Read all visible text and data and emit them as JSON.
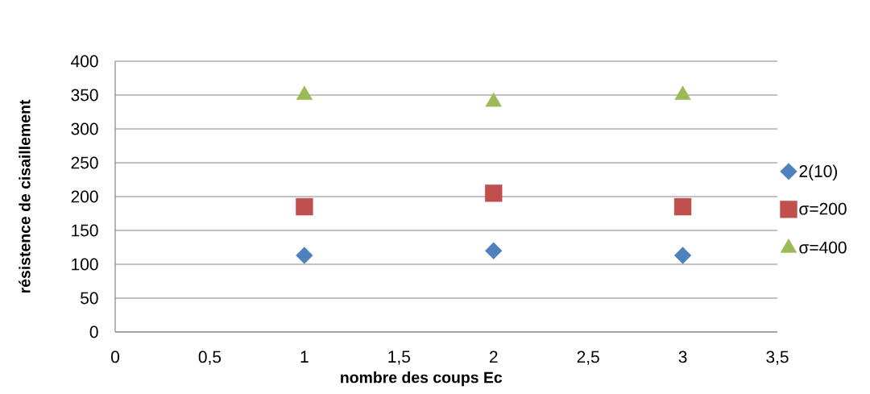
{
  "chart_data": {
    "type": "scatter",
    "xlabel": "nombre des coups Ec",
    "ylabel": "résistence de cisaillement",
    "xlim": [
      0,
      3.5
    ],
    "xticks": [
      0,
      {
        "value": 0.5,
        "label": "0,5"
      },
      1,
      {
        "value": 1.5,
        "label": "1,5"
      },
      2,
      {
        "value": 2.5,
        "label": "2,5"
      },
      3,
      {
        "value": 3.5,
        "label": "3,5"
      }
    ],
    "ylim": [
      0,
      400
    ],
    "yticks": [
      0,
      50,
      100,
      150,
      200,
      250,
      300,
      350,
      400
    ],
    "grid": "y",
    "legend": "right",
    "series": [
      {
        "name": "2(10)",
        "color": "#4f81bd",
        "marker": "diamond",
        "x": [
          1,
          2,
          3
        ],
        "values": [
          113,
          120,
          113
        ]
      },
      {
        "name": "σ=200",
        "color": "#c0504d",
        "marker": "square",
        "x": [
          1,
          2,
          3
        ],
        "values": [
          185,
          205,
          185
        ]
      },
      {
        "name": "σ=400",
        "color": "#9bbb59",
        "marker": "triangle",
        "x": [
          1,
          2,
          3
        ],
        "values": [
          350,
          340,
          350
        ]
      }
    ]
  }
}
